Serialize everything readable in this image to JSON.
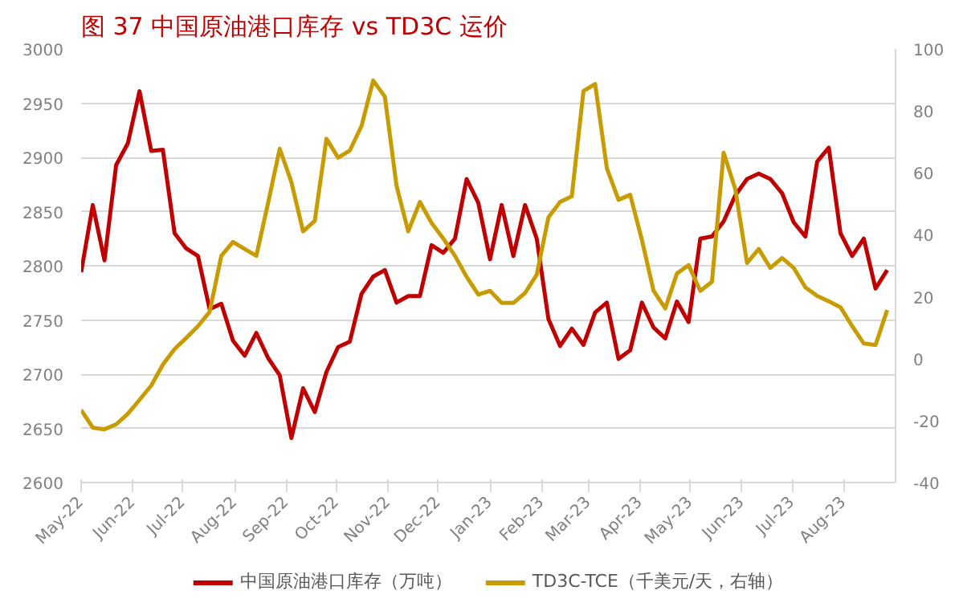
{
  "chart_data": {
    "type": "line",
    "title": "图 37   中国原油港口库存 vs TD3C 运价",
    "x": [
      "2022-05-01",
      "2022-05-08",
      "2022-05-15",
      "2022-05-22",
      "2022-05-29",
      "2022-06-05",
      "2022-06-12",
      "2022-06-19",
      "2022-06-26",
      "2022-07-03",
      "2022-07-10",
      "2022-07-17",
      "2022-07-24",
      "2022-07-31",
      "2022-08-07",
      "2022-08-14",
      "2022-08-21",
      "2022-08-28",
      "2022-09-04",
      "2022-09-11",
      "2022-09-18",
      "2022-09-25",
      "2022-10-02",
      "2022-10-09",
      "2022-10-16",
      "2022-10-23",
      "2022-10-30",
      "2022-11-06",
      "2022-11-13",
      "2022-11-20",
      "2022-11-27",
      "2022-12-04",
      "2022-12-11",
      "2022-12-18",
      "2022-12-25",
      "2023-01-01",
      "2023-01-08",
      "2023-01-15",
      "2023-01-22",
      "2023-01-29",
      "2023-02-05",
      "2023-02-12",
      "2023-02-19",
      "2023-02-26",
      "2023-03-05",
      "2023-03-12",
      "2023-03-19",
      "2023-03-26",
      "2023-04-02",
      "2023-04-09",
      "2023-04-16",
      "2023-04-23",
      "2023-04-30",
      "2023-05-07",
      "2023-05-14",
      "2023-05-21",
      "2023-05-28",
      "2023-06-04",
      "2023-06-11",
      "2023-06-18",
      "2023-06-25",
      "2023-07-02",
      "2023-07-09",
      "2023-07-16",
      "2023-07-23",
      "2023-07-30",
      "2023-08-06",
      "2023-08-13",
      "2023-08-20",
      "2023-08-27"
    ],
    "series": [
      {
        "name": "中国原油港口库存（万吨）",
        "color": "#c00000",
        "values": [
          2794,
          2856,
          2805,
          2893,
          2913,
          2961,
          2906,
          2907,
          2830,
          2816,
          2809,
          2760,
          2765,
          2731,
          2717,
          2738,
          2715,
          2699,
          2641,
          2687,
          2665,
          2702,
          2725,
          2730,
          2774,
          2790,
          2796,
          2766,
          2772,
          2772,
          2819,
          2812,
          2825,
          2880,
          2858,
          2806,
          2856,
          2809,
          2856,
          2825,
          2751,
          2726,
          2742,
          2727,
          2757,
          2766,
          2714,
          2722,
          2766,
          2743,
          2733,
          2767,
          2748,
          2825,
          2827,
          2841,
          2865,
          2880,
          2885,
          2880,
          2867,
          2840,
          2827,
          2896,
          2909,
          2830,
          2809,
          2825,
          2779,
          2796
        ]
      },
      {
        "name": "TD3C-TCE（千美元/天，右轴）",
        "color": "#c89b00",
        "axis": "y2",
        "values": [
          -16.6,
          -22.3,
          -22.8,
          -21.2,
          -17.8,
          -13.3,
          -8.7,
          -1.9,
          3.1,
          6.7,
          10.5,
          15.1,
          33.2,
          37.7,
          35.4,
          33.2,
          50.2,
          67.8,
          57.0,
          41.1,
          44.5,
          71.0,
          64.9,
          67.2,
          75.1,
          89.8,
          84.6,
          55.8,
          41.1,
          50.6,
          43.8,
          38.8,
          33.2,
          26.4,
          20.7,
          21.9,
          18.0,
          18.0,
          21.2,
          27.1,
          45.6,
          50.6,
          52.4,
          86.4,
          88.7,
          61.5,
          51.3,
          52.9,
          38.4,
          21.9,
          16.2,
          27.5,
          30.2,
          21.9,
          24.8,
          66.5,
          54.7,
          30.9,
          35.4,
          29.3,
          32.5,
          29.3,
          23.0,
          20.3,
          18.5,
          16.6,
          10.5,
          4.9,
          4.4,
          15.7
        ]
      }
    ],
    "xlim": [
      "2022-05-01",
      "2023-09-01"
    ],
    "xticks": [
      {
        "value": "2022-05-01",
        "label": "May-22"
      },
      {
        "value": "2022-06-01",
        "label": "Jun-22"
      },
      {
        "value": "2022-07-01",
        "label": "Jul-22"
      },
      {
        "value": "2022-08-01",
        "label": "Aug-22"
      },
      {
        "value": "2022-09-01",
        "label": "Sep-22"
      },
      {
        "value": "2022-10-01",
        "label": "Oct-22"
      },
      {
        "value": "2022-11-01",
        "label": "Nov-22"
      },
      {
        "value": "2022-12-01",
        "label": "Dec-22"
      },
      {
        "value": "2023-01-01",
        "label": "Jan-23"
      },
      {
        "value": "2023-02-01",
        "label": "Feb-23"
      },
      {
        "value": "2023-03-01",
        "label": "Mar-23"
      },
      {
        "value": "2023-04-01",
        "label": "Apr-23"
      },
      {
        "value": "2023-05-01",
        "label": "May-23"
      },
      {
        "value": "2023-06-01",
        "label": "Jun-23"
      },
      {
        "value": "2023-07-01",
        "label": "Jul-23"
      },
      {
        "value": "2023-08-01",
        "label": "Aug-23"
      }
    ],
    "ylim": [
      2600,
      3000
    ],
    "yticks": [
      2600,
      2650,
      2700,
      2750,
      2800,
      2850,
      2900,
      2950,
      3000
    ],
    "y2lim": [
      -40,
      100
    ],
    "y2ticks": [
      -40,
      -20,
      0,
      20,
      40,
      60,
      80,
      100
    ],
    "grid": "y",
    "legend": "bottom",
    "marker": "none",
    "line_style": "solid"
  }
}
